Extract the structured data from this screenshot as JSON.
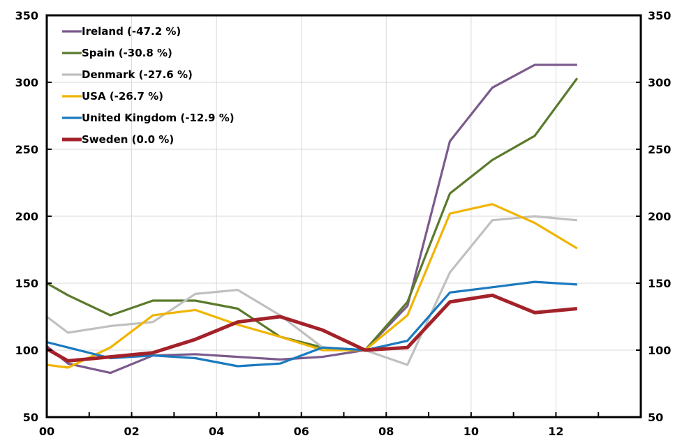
{
  "chart_data": {
    "type": "line",
    "xlim": [
      0,
      14
    ],
    "ylim": [
      50,
      350
    ],
    "x_ticks": [
      {
        "value": 0,
        "label": "00"
      },
      {
        "value": 2,
        "label": "02"
      },
      {
        "value": 4,
        "label": "04"
      },
      {
        "value": 6,
        "label": "06"
      },
      {
        "value": 8,
        "label": "08"
      },
      {
        "value": 10,
        "label": "10"
      },
      {
        "value": 12,
        "label": "12"
      }
    ],
    "y_ticks": [
      50,
      100,
      150,
      200,
      250,
      300,
      350
    ],
    "y_tick_labels": [
      "50",
      "100",
      "150",
      "200",
      "250",
      "300",
      "350"
    ],
    "grid": true,
    "legend_position": "top-left",
    "series": [
      {
        "name": "Ireland (-47.2 %)",
        "color": "#7B5A8C",
        "x": [
          0,
          0.5,
          1.5,
          2.5,
          3.5,
          4.5,
          5.5,
          6.5,
          7.5,
          8.5,
          9.5,
          10.5,
          11.5,
          12.5
        ],
        "y": [
          103,
          90,
          83,
          96,
          97,
          95,
          93,
          95,
          100,
          133,
          256,
          296,
          313,
          313
        ]
      },
      {
        "name": "Spain (-30.8 %)",
        "color": "#5A7A2C",
        "x": [
          0,
          0.5,
          1.5,
          2.5,
          3.5,
          4.5,
          5.5,
          6.5,
          7.5,
          8.5,
          9.5,
          10.5,
          11.5,
          12.5
        ],
        "y": [
          150,
          141,
          126,
          137,
          137,
          131,
          110,
          102,
          100,
          136,
          217,
          242,
          260,
          303
        ]
      },
      {
        "name": "Denmark (-27.6 %)",
        "color": "#C0C0C0",
        "x": [
          0,
          0.5,
          1.5,
          2.5,
          3.5,
          4.5,
          5.5,
          6.5,
          7.5,
          8.5,
          9.5,
          10.5,
          11.5,
          12.5
        ],
        "y": [
          125,
          113,
          118,
          121,
          142,
          145,
          126,
          102,
          100,
          89,
          158,
          197,
          200,
          197
        ]
      },
      {
        "name": "USA (-26.7 %)",
        "color": "#F0B400",
        "x": [
          0,
          0.5,
          1.5,
          2.5,
          3.5,
          4.5,
          5.5,
          6.5,
          7.5,
          8.5,
          9.5,
          10.5,
          11.5,
          12.5
        ],
        "y": [
          89,
          87,
          102,
          126,
          130,
          119,
          110,
          100,
          100,
          126,
          202,
          209,
          195,
          176
        ]
      },
      {
        "name": "United Kingdom (-12.9 %)",
        "color": "#1A7ABF",
        "x": [
          0,
          0.5,
          1.5,
          2.5,
          3.5,
          4.5,
          5.5,
          6.5,
          7.5,
          8.5,
          9.5,
          10.5,
          11.5,
          12.5
        ],
        "y": [
          106,
          102,
          94,
          96,
          94,
          88,
          90,
          102,
          100,
          107,
          143,
          147,
          151,
          149
        ]
      },
      {
        "name": "Sweden (0.0 %)",
        "color": "#A3222A",
        "x": [
          0,
          0.5,
          1.5,
          2.5,
          3.5,
          4.5,
          5.5,
          6.5,
          7.5,
          8.5,
          9.5,
          10.5,
          11.5,
          12.5
        ],
        "y": [
          101,
          92,
          95,
          98,
          108,
          121,
          125,
          115,
          100,
          102,
          136,
          141,
          128,
          131
        ]
      }
    ]
  }
}
